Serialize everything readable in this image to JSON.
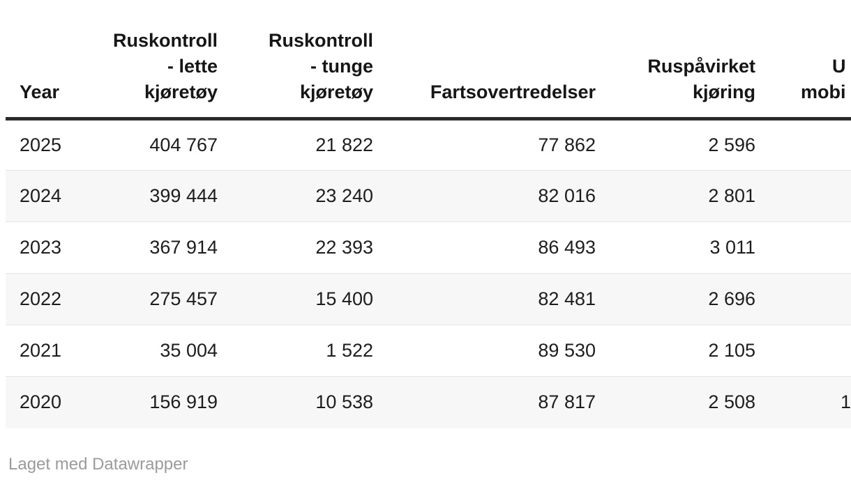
{
  "chart_data": {
    "type": "table",
    "columns": [
      {
        "id": "year",
        "label": "Year"
      },
      {
        "id": "ruskontroll_lette",
        "label": "Ruskontroll - lette kjøretøy",
        "label_lines": [
          "Ruskontroll",
          "- lette",
          "kjøretøy"
        ]
      },
      {
        "id": "ruskontroll_tunge",
        "label": "Ruskontroll - tunge kjøretøy",
        "label_lines": [
          "Ruskontroll",
          "- tunge",
          "kjøretøy"
        ]
      },
      {
        "id": "fartsovertredelser",
        "label": "Fartsovertredelser"
      },
      {
        "id": "ruspavirket_kjoring",
        "label": "Ruspåvirket kjøring",
        "label_lines": [
          "Ruspåvirket",
          "kjøring"
        ]
      },
      {
        "id": "truncated_column",
        "label_lines": [
          "U",
          "mobi"
        ],
        "truncated": true
      }
    ],
    "rows": [
      {
        "cells": [
          "2025",
          "404 767",
          "21 822",
          "77 862",
          "2 596",
          ""
        ]
      },
      {
        "cells": [
          "2024",
          "399 444",
          "23 240",
          "82 016",
          "2 801",
          ""
        ]
      },
      {
        "cells": [
          "2023",
          "367 914",
          "22 393",
          "86 493",
          "3 011",
          ""
        ]
      },
      {
        "cells": [
          "2022",
          "275 457",
          "15 400",
          "82 481",
          "2 696",
          ""
        ]
      },
      {
        "cells": [
          "2021",
          "35 004",
          "1 522",
          "89 530",
          "2 105",
          ""
        ]
      },
      {
        "cells": [
          "2020",
          "156 919",
          "10 538",
          "87 817",
          "2 508",
          "1"
        ]
      }
    ],
    "layout_hints": {
      "numeric_alignment": "right",
      "zebra_striping": true,
      "header_rule": true,
      "last_column_clipped_at_right_edge": true
    }
  },
  "footer": {
    "prefix": "Laget med ",
    "brand_link": "Datawrapper"
  },
  "colors": {
    "text": "#1d1d1d",
    "header_text": "#161616",
    "header_rule": "#2b2b2b",
    "stripe": "#f7f7f7",
    "row_border": "#e4e4e4",
    "footer_text": "#9b9b9b",
    "background": "#ffffff"
  }
}
